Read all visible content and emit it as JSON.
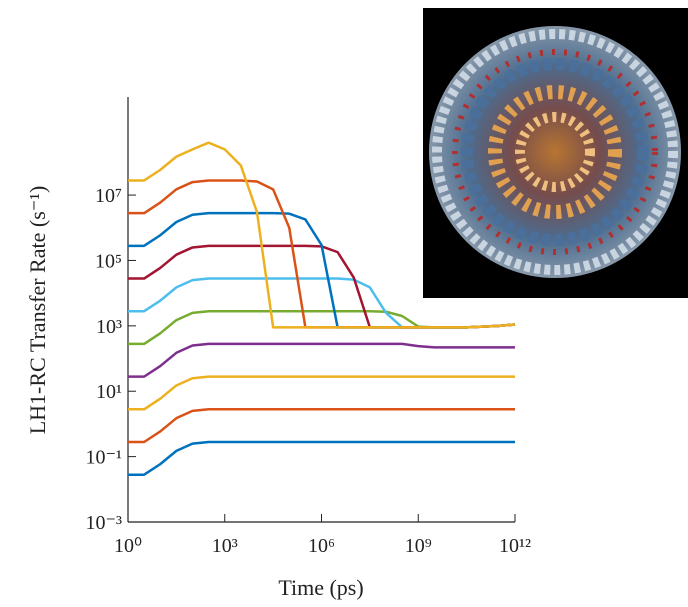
{
  "chart_data": {
    "type": "line",
    "xlabel": "Time (ps)",
    "ylabel": "LH1-RC Transfer Rate (s⁻¹)",
    "xscale": "log",
    "yscale": "log",
    "grid": false,
    "x": [
      1,
      3.162,
      10,
      31.62,
      100,
      316.2,
      1000,
      3162,
      10000,
      31620,
      100000,
      316200,
      1000000,
      3162000,
      10000000,
      31620000,
      100000000,
      316200000,
      1000000000,
      3162000000,
      10000000000,
      31620000000,
      100000000000,
      316200000000,
      1000000000000
    ],
    "xlim": [
      1,
      1000000000000
    ],
    "xticks": [
      {
        "value": 1,
        "label": "10⁰"
      },
      {
        "value": 1000,
        "label": "10³"
      },
      {
        "value": 1000000,
        "label": "10⁶"
      },
      {
        "value": 1000000000,
        "label": "10⁹"
      },
      {
        "value": 1000000000000,
        "label": "10¹²"
      }
    ],
    "ylim": [
      0.001,
      10000000000
    ],
    "yticks": [
      {
        "value": 0.001,
        "label": "10⁻³"
      },
      {
        "value": 0.1,
        "label": "10⁻¹"
      },
      {
        "value": 10,
        "label": "10¹"
      },
      {
        "value": 1000,
        "label": "10³"
      },
      {
        "value": 100000,
        "label": "10⁵"
      },
      {
        "value": 10000000,
        "label": "10⁷"
      }
    ],
    "series": [
      {
        "color": "#0072BD",
        "values": [
          0.028,
          0.028,
          0.059,
          0.15,
          0.25,
          0.28,
          0.28,
          0.28,
          0.28,
          0.28,
          0.28,
          0.28,
          0.28,
          0.28,
          0.28,
          0.28,
          0.28,
          0.28,
          0.28,
          0.28,
          0.28,
          0.28,
          0.28,
          0.28,
          0.28
        ]
      },
      {
        "color": "#D95319",
        "values": [
          0.28,
          0.28,
          0.59,
          1.5,
          2.5,
          2.8,
          2.8,
          2.8,
          2.8,
          2.8,
          2.8,
          2.8,
          2.8,
          2.8,
          2.8,
          2.8,
          2.8,
          2.8,
          2.8,
          2.8,
          2.8,
          2.8,
          2.8,
          2.8,
          2.8
        ]
      },
      {
        "color": "#EDB120",
        "values": [
          2.8,
          2.8,
          5.9,
          15,
          25,
          28,
          28,
          28,
          28,
          28,
          28,
          28,
          28,
          28,
          28,
          28,
          28,
          28,
          28,
          28,
          28,
          28,
          28,
          28,
          28
        ]
      },
      {
        "color": "#7E2F8E",
        "values": [
          28,
          28,
          59,
          150,
          250,
          280,
          280,
          280,
          280,
          280,
          280,
          280,
          280,
          280,
          280,
          280,
          280,
          280,
          240,
          220,
          220,
          220,
          220,
          220,
          220
        ]
      },
      {
        "color": "#77AC30",
        "values": [
          280,
          280,
          590,
          1500,
          2500,
          2800,
          2800,
          2800,
          2800,
          2800,
          2800,
          2800,
          2800,
          2800,
          2800,
          2800,
          2700,
          2000,
          950,
          900,
          900,
          900,
          950,
          1000,
          1100
        ]
      },
      {
        "color": "#4DBEEE",
        "values": [
          2800,
          2800,
          5900,
          15000,
          25000,
          28000,
          28000,
          28000,
          28000,
          28000,
          28000,
          28000,
          28000,
          28000,
          26000,
          15000,
          2500,
          900,
          900,
          900,
          900,
          900,
          950,
          1000,
          1100
        ]
      },
      {
        "color": "#A2142F",
        "values": [
          28000,
          28000,
          59000,
          150000,
          250000,
          280000,
          280000,
          280000,
          280000,
          280000,
          280000,
          280000,
          270000,
          180000,
          30000,
          900,
          900,
          900,
          900,
          900,
          900,
          900,
          950,
          1000,
          1100
        ]
      },
      {
        "color": "#0072BD",
        "values": [
          280000,
          280000,
          590000,
          1500000,
          2500000,
          2800000,
          2800000,
          2800000,
          2800000,
          2800000,
          2700000,
          1800000,
          300000,
          900,
          900,
          900,
          900,
          900,
          900,
          900,
          900,
          900,
          950,
          1000,
          1100
        ]
      },
      {
        "color": "#D95319",
        "values": [
          2800000,
          2800000,
          5900000,
          15000000,
          25000000,
          28000000,
          28000000,
          28000000,
          26000000,
          15000000,
          1000000,
          900,
          900,
          900,
          900,
          900,
          900,
          900,
          900,
          900,
          900,
          900,
          950,
          1000,
          1100
        ]
      },
      {
        "color": "#EDB120",
        "values": [
          28000000,
          28000000,
          59000000,
          150000000,
          250000000,
          400000000,
          250000000,
          80000000,
          3000000,
          900,
          900,
          900,
          900,
          900,
          900,
          900,
          900,
          900,
          900,
          900,
          900,
          900,
          950,
          1000,
          1100
        ]
      }
    ]
  }
}
